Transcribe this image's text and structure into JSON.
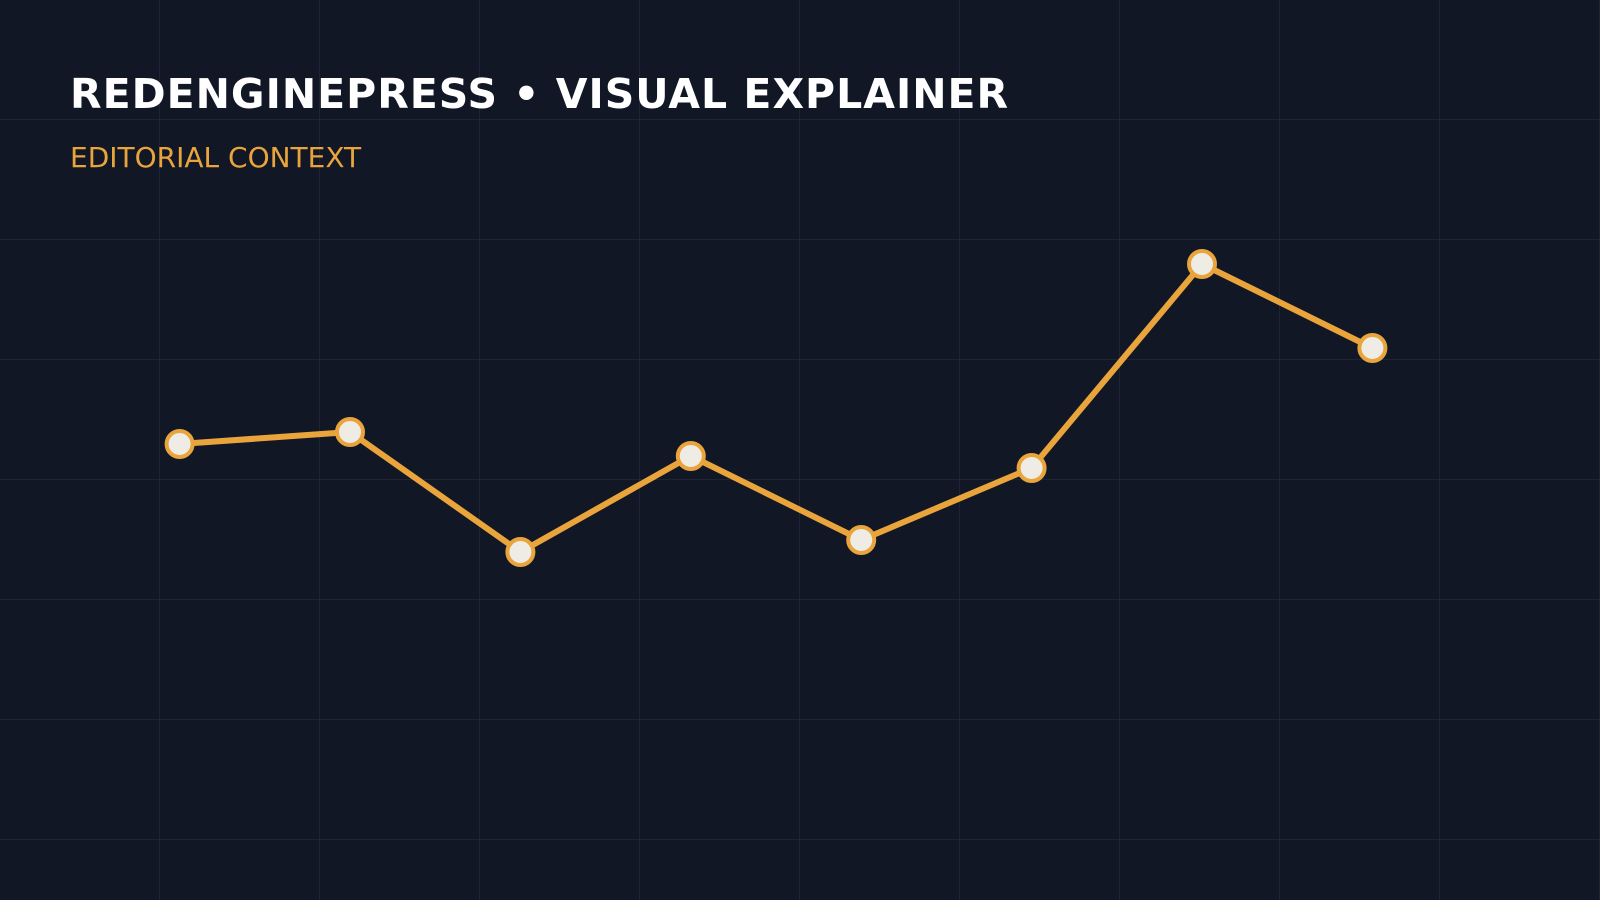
{
  "chart_data": {
    "type": "line",
    "title": "REDENGINEPRESS • VISUAL EXPLAINER",
    "subtitle": "EDITORIAL CONTEXT",
    "categories": [
      null,
      null,
      null,
      null,
      null,
      null,
      null,
      null
    ],
    "values": [
      3.8,
      3.9,
      2.9,
      3.7,
      3.0,
      3.6,
      5.3,
      4.6
    ],
    "color": "#e9a43c",
    "ylim": [
      0,
      7.5
    ]
  }
}
